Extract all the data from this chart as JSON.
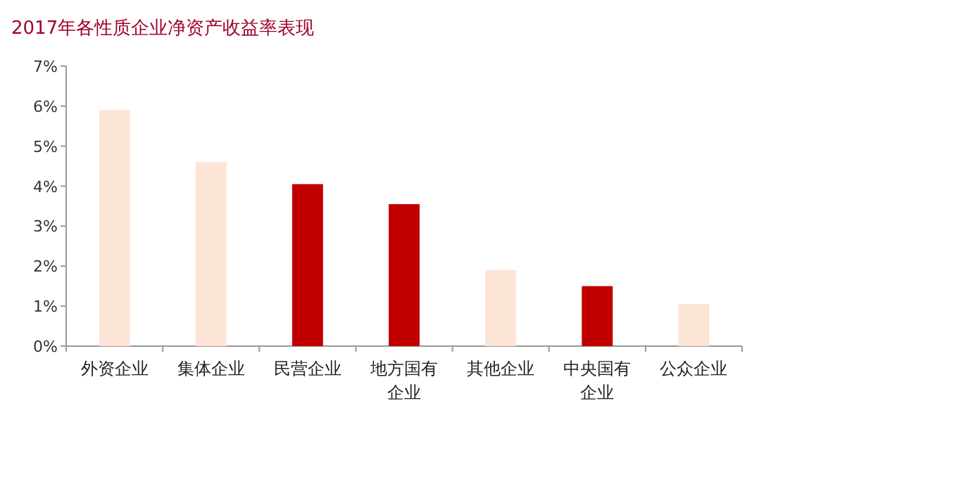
{
  "chart_data": {
    "type": "bar",
    "title": "2017年各性质企业净资产收益率表现",
    "categories": [
      "外资企业",
      "集体企业",
      "民营企业",
      "地方国有企业",
      "其他企业",
      "中央国有企业",
      "公众企业"
    ],
    "values": [
      5.9,
      4.6,
      4.05,
      3.55,
      1.9,
      1.5,
      1.05
    ],
    "colors": [
      "#fce4d6",
      "#fce4d6",
      "#c00000",
      "#c00000",
      "#fce4d6",
      "#c00000",
      "#fce4d6"
    ],
    "ylim": [
      0,
      7
    ],
    "yticks": [
      {
        "value": 0,
        "label": "0%"
      },
      {
        "value": 1,
        "label": "1%"
      },
      {
        "value": 2,
        "label": "2%"
      },
      {
        "value": 3,
        "label": "3%"
      },
      {
        "value": 4,
        "label": "4%"
      },
      {
        "value": 5,
        "label": "5%"
      },
      {
        "value": 6,
        "label": "6%"
      },
      {
        "value": 7,
        "label": "7%"
      }
    ],
    "grid": false
  }
}
